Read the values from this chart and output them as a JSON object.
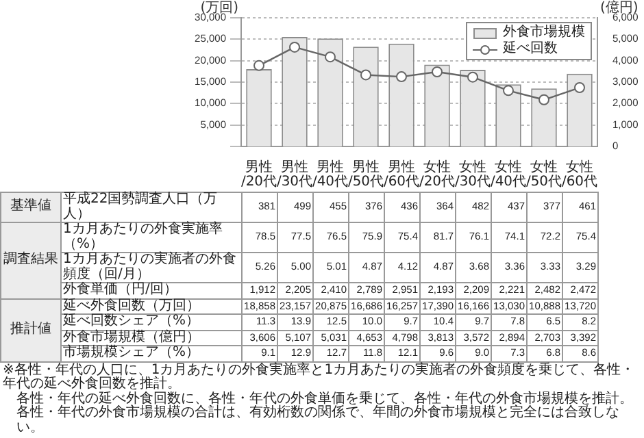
{
  "chart_data": {
    "type": "bar",
    "ylabel": "(万回)",
    "y2label": "(億円)",
    "categories": [
      "男性/20代",
      "男性/30代",
      "男性/40代",
      "男性/50代",
      "男性/60代",
      "女性/20代",
      "女性/30代",
      "女性/40代",
      "女性/50代",
      "女性/60代"
    ],
    "series": [
      {
        "name": "外食市場規模",
        "axis": "y2",
        "color": "#e6e6e6",
        "values": [
          3606,
          5107,
          5031,
          4653,
          4798,
          3813,
          3572,
          2894,
          2703,
          3392
        ]
      },
      {
        "name": "延べ回数",
        "type": "line",
        "axis": "y",
        "color": "#666666",
        "values": [
          18858,
          23157,
          20875,
          16686,
          16257,
          17390,
          16166,
          13030,
          10888,
          13720
        ]
      }
    ],
    "ylim": [
      0,
      30000
    ],
    "yticks": [
      {
        "value": 0,
        "label": null
      },
      {
        "value": 5000,
        "label": "5,000"
      },
      {
        "value": 10000,
        "label": "10,000"
      },
      {
        "value": 15000,
        "label": "15,000"
      },
      {
        "value": 20000,
        "label": "20,000"
      },
      {
        "value": 25000,
        "label": "25,000"
      },
      {
        "value": 30000,
        "label": "30,000"
      }
    ],
    "y2lim": [
      0,
      6000
    ],
    "y2ticks": [
      0,
      {
        "value": 1000,
        "label": "1,000"
      },
      {
        "value": 2000,
        "label": "2,000"
      },
      {
        "value": 3000,
        "label": "3,000"
      },
      {
        "value": 4000,
        "label": "4,000"
      },
      {
        "value": 5000,
        "label": "5,000"
      },
      {
        "value": 6000,
        "label": "6,000"
      }
    ],
    "grid": "y",
    "legend": "top right",
    "marker": "circle",
    "line_style": "solid",
    "annotations": [
      "基準値",
      "平成22国勢調査人口（万人）\t381\t499\t455\t376\t436\t364\t482\t437\t377\t461",
      "調査結果",
      "1カ月あたりの外食実施率（%）\t78.5\t77.5\t76.5\t75.9\t75.4\t81.7\t76.1\t74.1\t72.2\t75.4",
      "1カ月あたりの実施者の外食頻度（回/月）\t5.26\t5.00\t5.01\t4.87\t4.12\t4.87\t3.68\t3.36\t3.33\t3.29",
      "外食単価（円/回）\t1,912\t2,205\t2,410\t2,789\t2,951\t2,193\t2,209\t2,221\t2,482\t2,472",
      "推計値",
      "延べ外食回数（万回）\t18,858\t23,157\t20,875\t16,686\t16,257\t17,390\t16,166\t13,030\t10,888\t13,720",
      "延べ回数シェア（%）\t11.3\t13.9\t12.5\t10.0\t9.7\t10.4\t9.7\t7.8\t6.5\t8.2",
      "外食市場規模（億円）\t3,606\t5,107\t5,031\t4,653\t4,798\t3,813\t3,572\t2,894\t2,703\t3,392",
      "市場規模シェア（%）\t9.1\t12.9\t12.7\t11.8\t12.1\t9.6\t9.0\t7.3\t6.8\t8.6",
      "※各性・年代の人口に、1カ月あたりの外食実施率と1カ月あたりの実施者の外食頻度を乗じて、各性・年代の延べ外食回数を推計。",
      "各性・年代の延べ外食回数に、各性・年代の外食単価を乗じて、各性・年代の外食市場規模を推計。",
      "各性・年代の外食市場規模の合計は、有効桁数の関係で、年間の外食市場規模と完全には合致しない。"
    ]
  }
}
